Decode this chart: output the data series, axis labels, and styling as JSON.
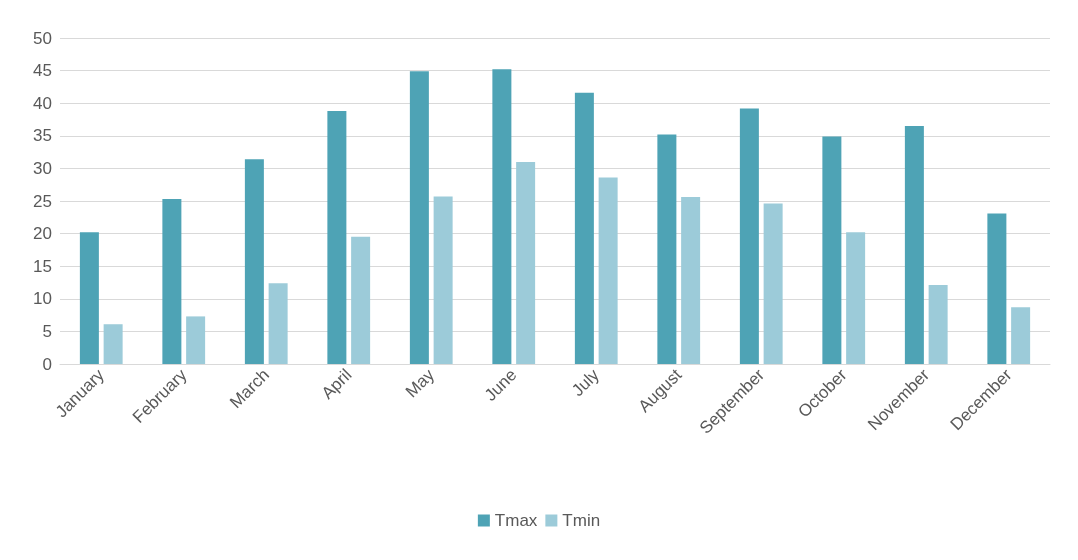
{
  "chart_data": {
    "type": "bar",
    "categories": [
      "January",
      "February",
      "March",
      "April",
      "May",
      "June",
      "July",
      "August",
      "September",
      "October",
      "November",
      "December"
    ],
    "series": [
      {
        "name": "Tmax",
        "color": "#4ea3b5",
        "values": [
          20.2,
          25.3,
          31.4,
          38.8,
          44.9,
          45.2,
          41.6,
          35.2,
          39.2,
          34.9,
          36.5,
          23.1
        ]
      },
      {
        "name": "Tmin",
        "color": "#9ccbd9",
        "values": [
          6.1,
          7.3,
          12.4,
          19.5,
          25.7,
          31.0,
          28.6,
          25.6,
          24.6,
          20.2,
          12.1,
          8.7
        ]
      }
    ],
    "ylim": [
      0,
      50
    ],
    "yticks": [
      0,
      5,
      10,
      15,
      20,
      25,
      30,
      35,
      40,
      45,
      50
    ],
    "grid": "y",
    "legend": "bottom"
  }
}
